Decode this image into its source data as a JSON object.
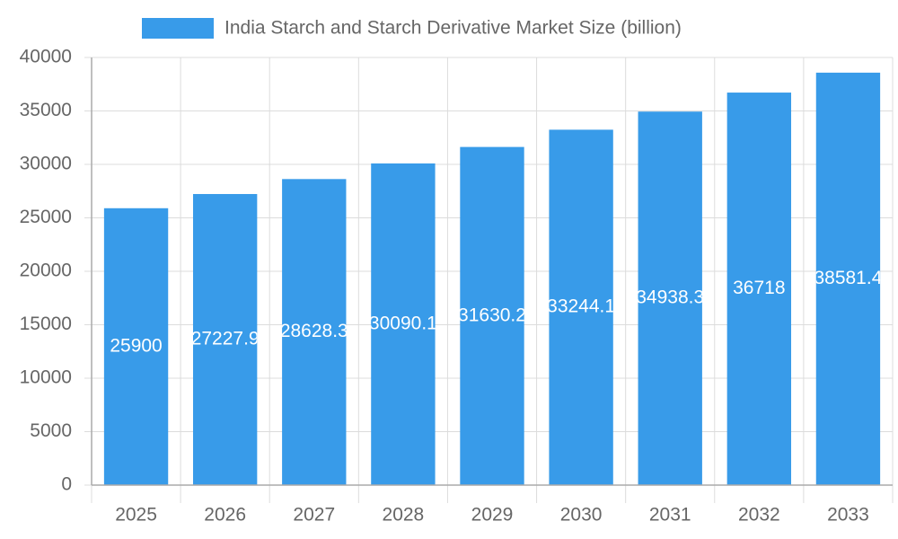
{
  "chart_data": {
    "type": "bar",
    "legend": "India Starch and Starch Derivative Market Size (billion)",
    "color": "#389be9",
    "categories": [
      "2025",
      "2026",
      "2027",
      "2028",
      "2029",
      "2030",
      "2031",
      "2032",
      "2033"
    ],
    "values": [
      25900,
      27227.9,
      28628.3,
      30090.1,
      31630.2,
      33244.1,
      34938.3,
      36718.0,
      38581.4
    ],
    "ylim": [
      0,
      40000
    ],
    "yticks": [
      0,
      5000,
      10000,
      15000,
      20000,
      25000,
      30000,
      35000,
      40000
    ],
    "grid": true
  }
}
